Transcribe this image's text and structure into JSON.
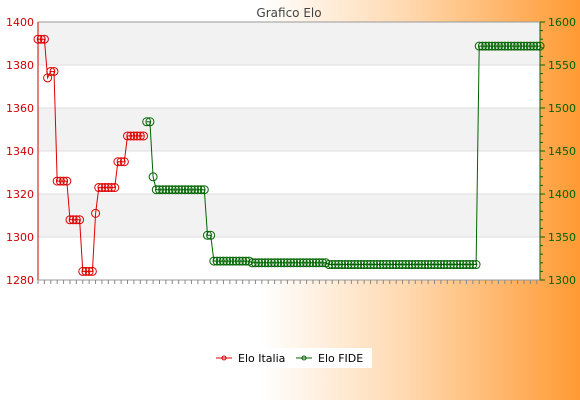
{
  "chart_data": {
    "type": "line",
    "title": "Grafico Elo",
    "xlabel": "",
    "ylabel_left": "",
    "ylabel_right": "",
    "grid": true,
    "legend_position": "bottom-center",
    "ylim_left": [
      1280,
      1400
    ],
    "ylim_right": [
      1300,
      1600
    ],
    "yticks_left": [
      1280,
      1300,
      1320,
      1340,
      1360,
      1380,
      1400
    ],
    "yticks_right": [
      1300,
      1350,
      1400,
      1450,
      1500,
      1550,
      1600
    ],
    "colors": {
      "Elo Italia": "#dd0000",
      "Elo FIDE": "#006400"
    },
    "series": [
      {
        "name": "Elo Italia",
        "axis": "left",
        "values": [
          1392,
          1392,
          1392,
          1374,
          1377,
          1377,
          1326,
          1326,
          1326,
          1326,
          1308,
          1308,
          1308,
          1308,
          1284,
          1284,
          1284,
          1284,
          1311,
          1323,
          1323,
          1323,
          1323,
          1323,
          1323,
          1335,
          1335,
          1335,
          1347,
          1347,
          1347,
          1347,
          1347,
          1347
        ]
      },
      {
        "name": "Elo FIDE",
        "axis": "right",
        "values": [
          null,
          null,
          null,
          null,
          null,
          null,
          null,
          null,
          null,
          null,
          null,
          null,
          null,
          null,
          null,
          null,
          null,
          null,
          null,
          null,
          null,
          null,
          null,
          null,
          null,
          null,
          null,
          null,
          null,
          null,
          null,
          null,
          null,
          null,
          1484,
          1484,
          1420,
          1405,
          1405,
          1405,
          1405,
          1405,
          1405,
          1405,
          1405,
          1405,
          1405,
          1405,
          1405,
          1405,
          1405,
          1405,
          1405,
          1352,
          1352,
          1322,
          1322,
          1322,
          1322,
          1322,
          1322,
          1322,
          1322,
          1322,
          1322,
          1322,
          1322,
          1320,
          1320,
          1320,
          1320,
          1320,
          1320,
          1320,
          1320,
          1320,
          1320,
          1320,
          1320,
          1320,
          1320,
          1320,
          1320,
          1320,
          1320,
          1320,
          1320,
          1320,
          1320,
          1320,
          1320,
          1318,
          1318,
          1318,
          1318,
          1318,
          1318,
          1318,
          1318,
          1318,
          1318,
          1318,
          1318,
          1318,
          1318,
          1318,
          1318,
          1318,
          1318,
          1318,
          1318,
          1318,
          1318,
          1318,
          1318,
          1318,
          1318,
          1318,
          1318,
          1318,
          1318,
          1318,
          1318,
          1318,
          1318,
          1318,
          1318,
          1318,
          1318,
          1318,
          1318,
          1318,
          1318,
          1318,
          1318,
          1318,
          1318,
          1318,
          1572,
          1572,
          1572,
          1572,
          1572,
          1572,
          1572,
          1572,
          1572,
          1572,
          1572,
          1572,
          1572,
          1572,
          1572,
          1572,
          1572,
          1572,
          1572,
          1572
        ]
      }
    ]
  }
}
